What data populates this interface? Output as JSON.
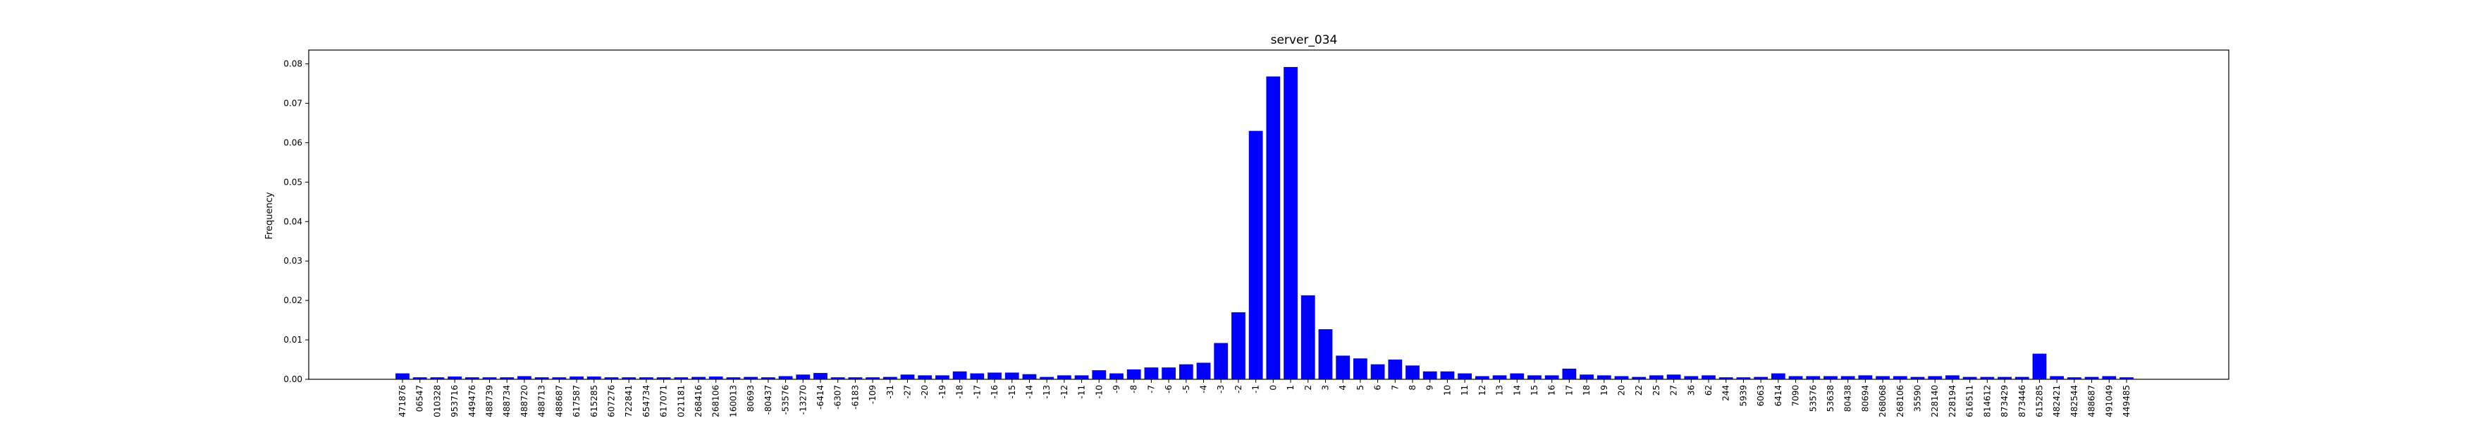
{
  "chart_data": {
    "type": "bar",
    "title": "server_034",
    "xlabel": "",
    "ylabel": "Frequency",
    "ylim": [
      0,
      0.0835
    ],
    "yticks": [
      0.0,
      0.01,
      0.02,
      0.03,
      0.04,
      0.05,
      0.06,
      0.07,
      0.08
    ],
    "ytick_labels": [
      "0.00",
      "0.01",
      "0.02",
      "0.03",
      "0.04",
      "0.05",
      "0.06",
      "0.07",
      "0.08"
    ],
    "bar_color": "#0000ff",
    "grid": false,
    "legend": "none",
    "categories": [
      "471876",
      "06547",
      "010328",
      "953716",
      "449476",
      "488739",
      "488734",
      "488720",
      "488713",
      "488687",
      "617587",
      "615285",
      "607276",
      "722841",
      "654734",
      "617071",
      "021181",
      "268416",
      "268106",
      "160013",
      "80693",
      "-80437",
      "-53576",
      "-13270",
      "-6414",
      "-6307",
      "-6183",
      "-109",
      "-31",
      "-27",
      "-20",
      "-19",
      "-18",
      "-17",
      "-16",
      "-15",
      "-14",
      "-13",
      "-12",
      "-11",
      "-10",
      "-9",
      "-8",
      "-7",
      "-6",
      "-5",
      "-4",
      "-3",
      "-2",
      "-1",
      "0",
      "1",
      "2",
      "3",
      "4",
      "5",
      "6",
      "7",
      "8",
      "9",
      "10",
      "11",
      "12",
      "13",
      "14",
      "15",
      "16",
      "17",
      "18",
      "19",
      "20",
      "22",
      "25",
      "27",
      "36",
      "62",
      "244",
      "5939",
      "6063",
      "6414",
      "7090",
      "53576",
      "53638",
      "80438",
      "80694",
      "268068",
      "268106",
      "35590",
      "228140",
      "228194",
      "616511",
      "814612",
      "873429",
      "873446",
      "615285",
      "482421",
      "482544",
      "488687",
      "491049",
      "449485"
    ],
    "values": [
      0.0015,
      0.0005,
      0.0005,
      0.0007,
      0.0005,
      0.0005,
      0.0005,
      0.0008,
      0.0005,
      0.0005,
      0.0007,
      0.0007,
      0.0005,
      0.0005,
      0.0005,
      0.0005,
      0.0005,
      0.0006,
      0.0007,
      0.0005,
      0.0006,
      0.0005,
      0.0008,
      0.0012,
      0.0016,
      0.0005,
      0.0005,
      0.0005,
      0.0006,
      0.0012,
      0.001,
      0.001,
      0.002,
      0.0015,
      0.0017,
      0.0017,
      0.0013,
      0.0006,
      0.001,
      0.001,
      0.0023,
      0.0015,
      0.0025,
      0.003,
      0.003,
      0.0038,
      0.0042,
      0.0092,
      0.017,
      0.063,
      0.0768,
      0.0792,
      0.0213,
      0.0127,
      0.006,
      0.0053,
      0.0038,
      0.005,
      0.0035,
      0.002,
      0.002,
      0.0015,
      0.0008,
      0.001,
      0.0015,
      0.001,
      0.001,
      0.0027,
      0.0012,
      0.001,
      0.0008,
      0.0006,
      0.001,
      0.0012,
      0.0008,
      0.001,
      0.0005,
      0.0005,
      0.0006,
      0.0015,
      0.0008,
      0.0008,
      0.0008,
      0.0008,
      0.001,
      0.0008,
      0.0008,
      0.0006,
      0.0008,
      0.001,
      0.0006,
      0.0006,
      0.0006,
      0.0006,
      0.0065,
      0.0008,
      0.0005,
      0.0006,
      0.0008,
      0.0005
    ]
  }
}
